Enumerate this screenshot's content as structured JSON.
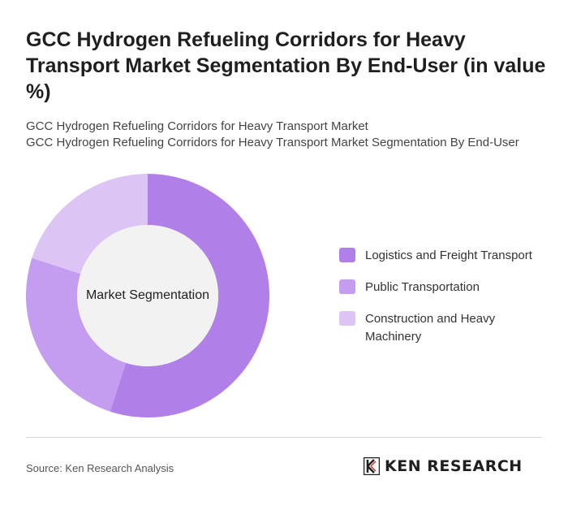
{
  "header": {
    "title": "GCC Hydrogen Refueling Corridors for Heavy Transport Market Segmentation By End-User (in value %)",
    "subtitle_line1": "GCC Hydrogen Refueling Corridors for Heavy Transport Market",
    "subtitle_line2": "GCC Hydrogen Refueling Corridors for Heavy Transport Market Segmentation By End-User"
  },
  "chart_data": {
    "type": "pie",
    "center_label": "Market Segmentation",
    "categories": [
      "Logistics and Freight Transport",
      "Public Transportation",
      "Construction and Heavy Machinery"
    ],
    "values": [
      55,
      25,
      20
    ],
    "colors": [
      "#b07fe8",
      "#c49df0",
      "#dcc5f5"
    ],
    "legend_position": "right"
  },
  "footer": {
    "source": "Source: Ken Research Analysis",
    "logo_text": "KEN RESEARCH"
  }
}
